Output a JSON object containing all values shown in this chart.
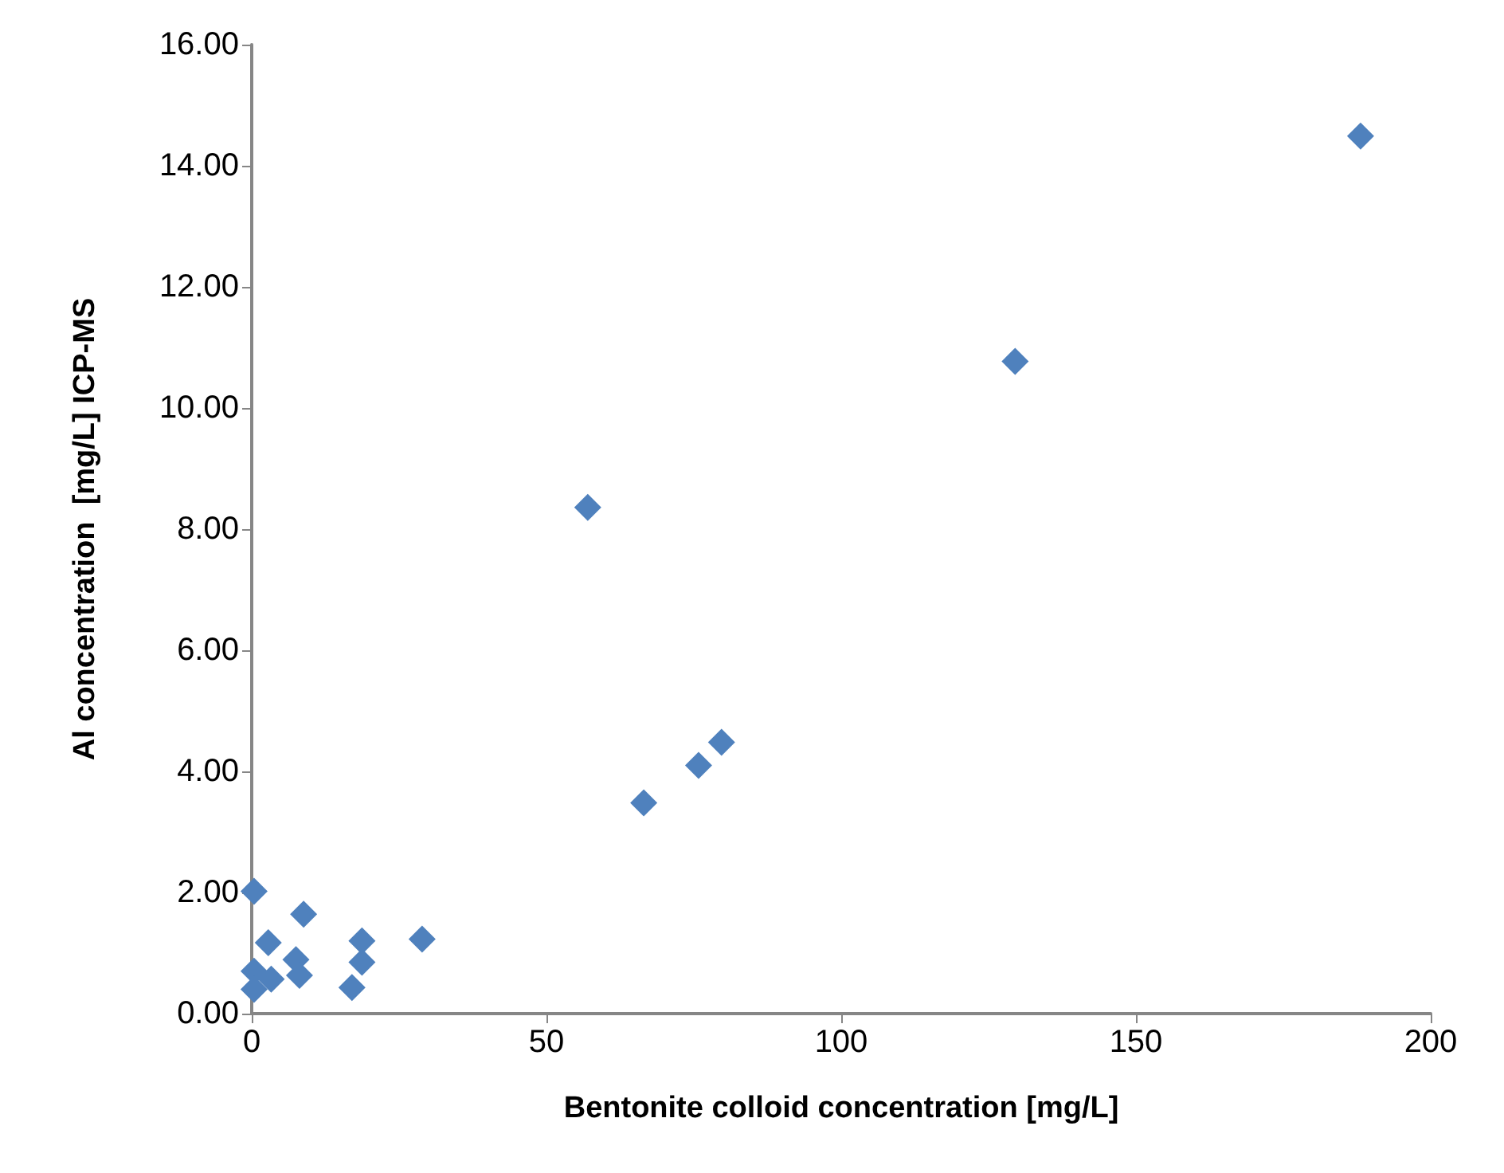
{
  "chart_data": {
    "type": "scatter",
    "xlabel": "Bentonite colloid concentration [mg/L]",
    "ylabel": "Al concentration  [mg/L] ICP-MS",
    "x": [
      188.1,
      129.5,
      57.0,
      66.5,
      75.8,
      79.7,
      28.9,
      18.7,
      18.7,
      17.0,
      8.8,
      7.5,
      8.1,
      2.8,
      0.4,
      0.4,
      3.3,
      0.4
    ],
    "values": [
      14.49,
      10.77,
      8.36,
      3.48,
      4.1,
      4.48,
      1.23,
      1.2,
      0.85,
      0.43,
      1.64,
      0.89,
      0.63,
      1.17,
      2.02,
      0.7,
      0.57,
      0.4
    ],
    "color": "#4f81bd",
    "marker": "diamond",
    "grid": false,
    "xlim": [
      0,
      200
    ],
    "xticks": [
      0,
      50,
      100,
      150,
      200
    ],
    "ylim": [
      0,
      16
    ],
    "yticks": [
      {
        "value": 0,
        "label": "0.00"
      },
      {
        "value": 2,
        "label": "2.00"
      },
      {
        "value": 4,
        "label": "4.00"
      },
      {
        "value": 6,
        "label": "6.00"
      },
      {
        "value": 8,
        "label": "8.00"
      },
      {
        "value": 10,
        "label": "10.00"
      },
      {
        "value": 12,
        "label": "12.00"
      },
      {
        "value": 14,
        "label": "14.00"
      },
      {
        "value": 16,
        "label": "16.00"
      }
    ]
  }
}
